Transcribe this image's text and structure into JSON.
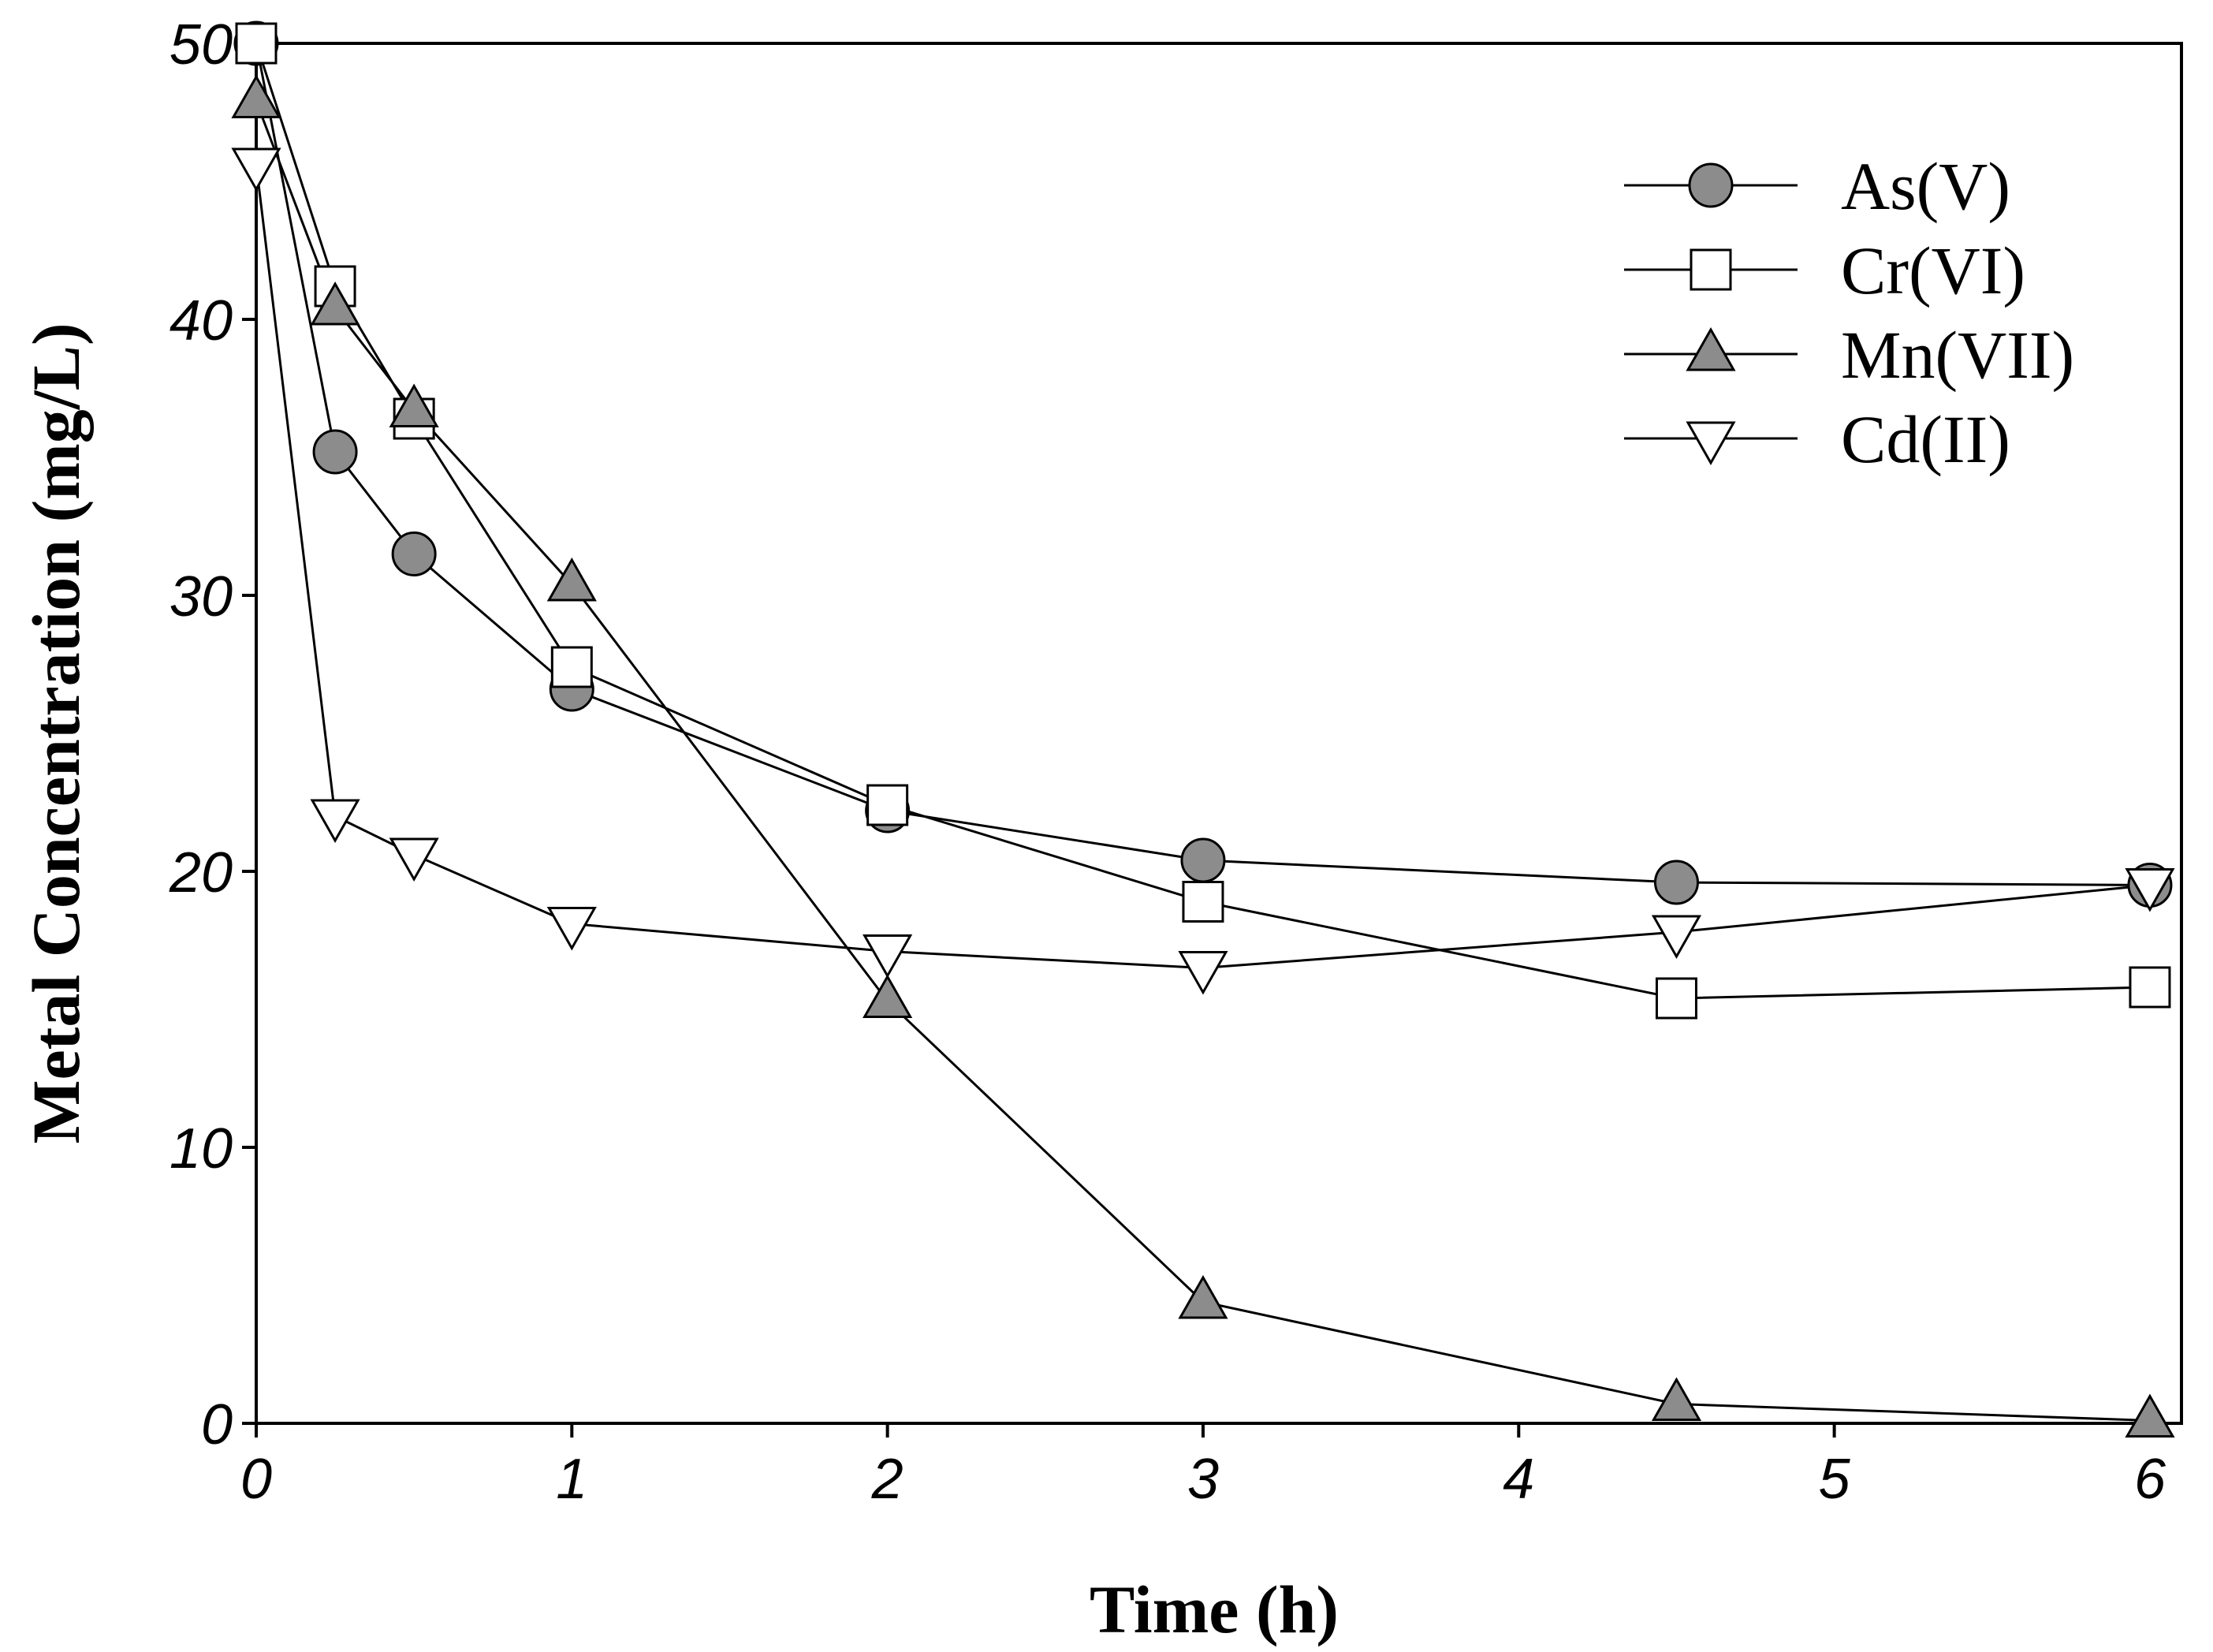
{
  "chart_data": {
    "type": "line",
    "title": "",
    "xlabel": "Time (h)",
    "ylabel": "Metal Concentration (mg/L)",
    "xlim": [
      0,
      6.1
    ],
    "ylim": [
      0,
      50
    ],
    "xticks": [
      0,
      1,
      2,
      3,
      4,
      5,
      6
    ],
    "xtick_labels": [
      "0",
      "1",
      "2",
      "3",
      "4",
      "5",
      "6"
    ],
    "yticks": [
      0,
      10,
      20,
      30,
      40,
      50
    ],
    "ytick_labels": [
      "0",
      "10",
      "20",
      "30",
      "40",
      "50"
    ],
    "grid": false,
    "legend_position": "top-right",
    "series": [
      {
        "name": "As(V)",
        "marker": "circle",
        "fill": "#8c8c8c",
        "x": [
          0,
          0.25,
          0.5,
          1,
          2,
          3,
          4.5,
          6
        ],
        "y": [
          50,
          35.2,
          31.5,
          26.6,
          22.2,
          20.4,
          19.6,
          19.5
        ]
      },
      {
        "name": "Cr(VI)",
        "marker": "square",
        "fill": "#ffffff",
        "x": [
          0,
          0.25,
          0.5,
          1,
          2,
          3,
          4.5,
          6
        ],
        "y": [
          50,
          41.2,
          36.4,
          27.4,
          22.4,
          18.9,
          15.4,
          15.8
        ]
      },
      {
        "name": "Mn(VII)",
        "marker": "triangle-up",
        "fill": "#8c8c8c",
        "x": [
          0,
          0.25,
          0.5,
          1,
          2,
          3,
          4.5,
          6
        ],
        "y": [
          47.9,
          40.4,
          36.7,
          30.4,
          15.3,
          4.4,
          0.7,
          0.1
        ]
      },
      {
        "name": "Cd(II)",
        "marker": "triangle-down",
        "fill": "#ffffff",
        "x": [
          0,
          0.25,
          0.5,
          1,
          2,
          3,
          4.5,
          6
        ],
        "y": [
          45.6,
          22.0,
          20.6,
          18.1,
          17.1,
          16.5,
          17.8,
          19.5
        ]
      }
    ]
  }
}
